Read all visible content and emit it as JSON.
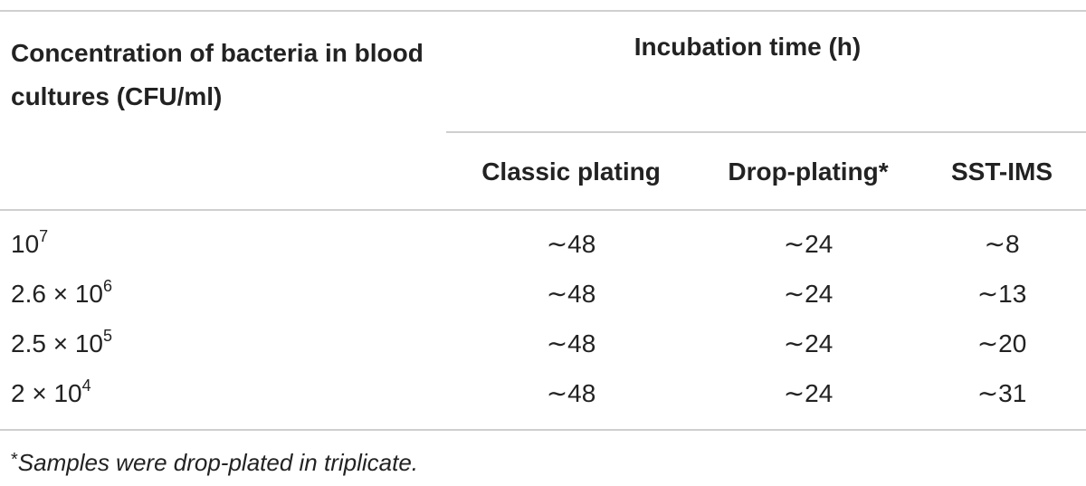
{
  "table": {
    "header": {
      "concentration": "Concentration of bacteria in blood cultures (CFU/ml)",
      "group": "Incubation time (h)",
      "columns": [
        "Classic plating",
        "Drop-plating*",
        "SST-IMS"
      ]
    },
    "rows": [
      {
        "base": "10",
        "exponent": "7",
        "values": [
          "∼48",
          "∼24",
          "∼8"
        ]
      },
      {
        "base": "2.6 × 10",
        "exponent": "6",
        "values": [
          "∼48",
          "∼24",
          "∼13"
        ]
      },
      {
        "base": "2.5 × 10",
        "exponent": "5",
        "values": [
          "∼48",
          "∼24",
          "∼20"
        ]
      },
      {
        "base": "2 × 10",
        "exponent": "4",
        "values": [
          "∼48",
          "∼24",
          "∼31"
        ]
      }
    ],
    "footnote": {
      "marker": "*",
      "text": "Samples were drop-plated in triplicate."
    }
  }
}
